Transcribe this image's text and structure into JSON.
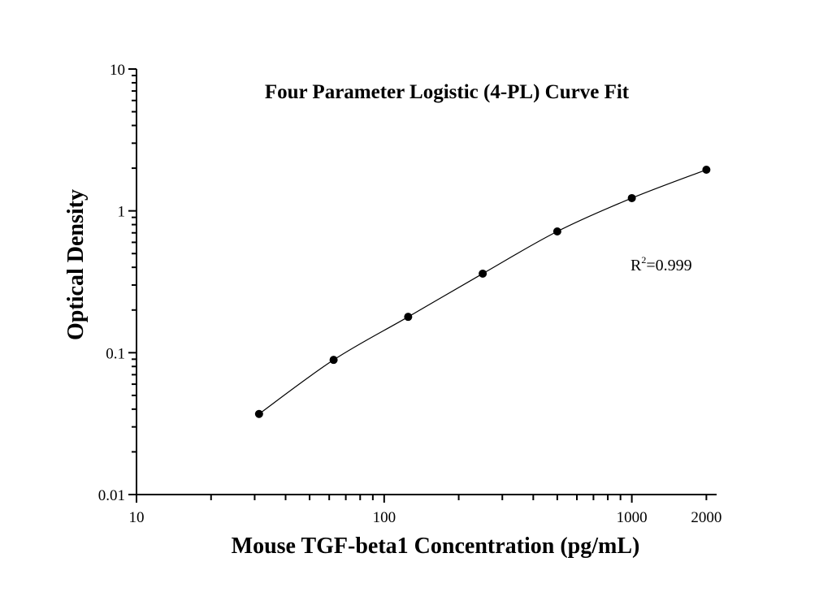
{
  "chart_data": {
    "type": "scatter",
    "title": "Four Parameter Logistic (4-PL) Curve Fit",
    "xlabel": "Mouse TGF-beta1 Concentration (pg/mL)",
    "ylabel": "Optical Density",
    "x_scale": "log",
    "y_scale": "log",
    "xlim": [
      10,
      2200
    ],
    "ylim": [
      0.01,
      10
    ],
    "x_tick_labels": [
      "10",
      "100",
      "1000",
      "2000"
    ],
    "x_tick_values": [
      10,
      100,
      1000,
      2000
    ],
    "y_tick_labels": [
      "0.01",
      "0.1",
      "1",
      "10"
    ],
    "y_tick_values": [
      0.01,
      0.1,
      1,
      10
    ],
    "grid": false,
    "annotation": {
      "base": "R",
      "sup": "2",
      "rest": "=0.999"
    },
    "series": [
      {
        "x": [
          31.25,
          62.5,
          125,
          250,
          500,
          1000,
          2000
        ],
        "y": [
          0.037,
          0.089,
          0.179,
          0.361,
          0.716,
          1.23,
          1.95
        ],
        "marker": "circle",
        "fit_line": "4-PL",
        "color": "#000000"
      }
    ]
  }
}
